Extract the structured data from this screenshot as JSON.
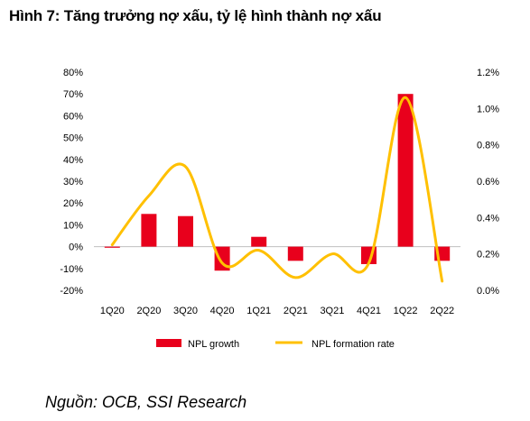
{
  "title": "Hình 7: Tăng trưởng nợ xấu, tỷ lệ hình thành nợ xấu",
  "source": "Nguồn: OCB, SSI Research",
  "chart_data": {
    "type": "bar",
    "categories": [
      "1Q20",
      "2Q20",
      "3Q20",
      "4Q20",
      "1Q21",
      "2Q21",
      "3Q21",
      "4Q21",
      "1Q22",
      "2Q22"
    ],
    "series": [
      {
        "name": "NPL growth",
        "type": "bar",
        "axis": "left",
        "color": "#e8001c",
        "values": [
          -0.5,
          15,
          14,
          -11,
          4.5,
          -6.5,
          0,
          -8,
          70,
          -6.5
        ]
      },
      {
        "name": "NPL formation rate",
        "type": "line",
        "axis": "right",
        "color": "#ffc000",
        "values": [
          0.25,
          0.52,
          0.68,
          0.15,
          0.22,
          0.07,
          0.2,
          0.15,
          1.06,
          0.05
        ]
      }
    ],
    "left_axis": {
      "min": -20,
      "max": 80,
      "step": 10,
      "tick_labels": [
        "-20%",
        "-10%",
        "0%",
        "10%",
        "20%",
        "30%",
        "40%",
        "50%",
        "60%",
        "70%",
        "80%"
      ]
    },
    "right_axis": {
      "min": 0,
      "max": 1.2,
      "step": 0.2,
      "tick_labels": [
        "0.0%",
        "0.2%",
        "0.4%",
        "0.6%",
        "0.8%",
        "1.0%",
        "1.2%"
      ]
    },
    "legend_position": "bottom",
    "grid": false
  }
}
